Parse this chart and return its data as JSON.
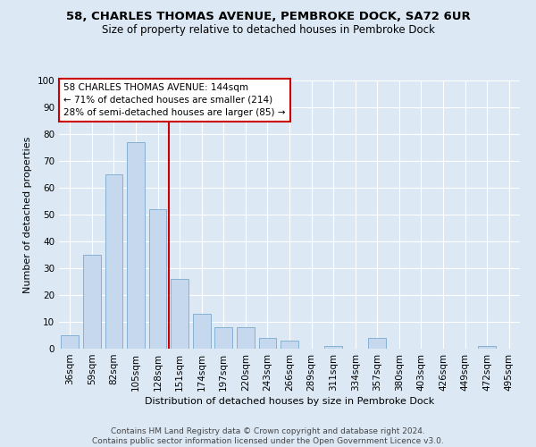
{
  "title1": "58, CHARLES THOMAS AVENUE, PEMBROKE DOCK, SA72 6UR",
  "title2": "Size of property relative to detached houses in Pembroke Dock",
  "xlabel": "Distribution of detached houses by size in Pembroke Dock",
  "ylabel": "Number of detached properties",
  "categories": [
    "36sqm",
    "59sqm",
    "82sqm",
    "105sqm",
    "128sqm",
    "151sqm",
    "174sqm",
    "197sqm",
    "220sqm",
    "243sqm",
    "266sqm",
    "289sqm",
    "311sqm",
    "334sqm",
    "357sqm",
    "380sqm",
    "403sqm",
    "426sqm",
    "449sqm",
    "472sqm",
    "495sqm"
  ],
  "values": [
    5,
    35,
    65,
    77,
    52,
    26,
    13,
    8,
    8,
    4,
    3,
    0,
    1,
    0,
    4,
    0,
    0,
    0,
    0,
    1,
    0
  ],
  "bar_color": "#c5d8ed",
  "bar_edge_color": "#7aaace",
  "bar_width": 0.8,
  "property_line_x": 4.5,
  "ylim": [
    0,
    100
  ],
  "yticks": [
    0,
    10,
    20,
    30,
    40,
    50,
    60,
    70,
    80,
    90,
    100
  ],
  "annotation_text": "58 CHARLES THOMAS AVENUE: 144sqm\n← 71% of detached houses are smaller (214)\n28% of semi-detached houses are larger (85) →",
  "footer": "Contains HM Land Registry data © Crown copyright and database right 2024.\nContains public sector information licensed under the Open Government Licence v3.0.",
  "bg_color": "#dce9f5",
  "grid_color": "#ffffff",
  "line_color": "#cc0000",
  "annotation_box_color": "#ffffff",
  "annotation_border_color": "#cc0000",
  "title1_fontsize": 9.5,
  "title2_fontsize": 8.5,
  "ylabel_fontsize": 8,
  "xlabel_fontsize": 8,
  "tick_fontsize": 7.5,
  "annotation_fontsize": 7.5,
  "footer_fontsize": 6.5
}
